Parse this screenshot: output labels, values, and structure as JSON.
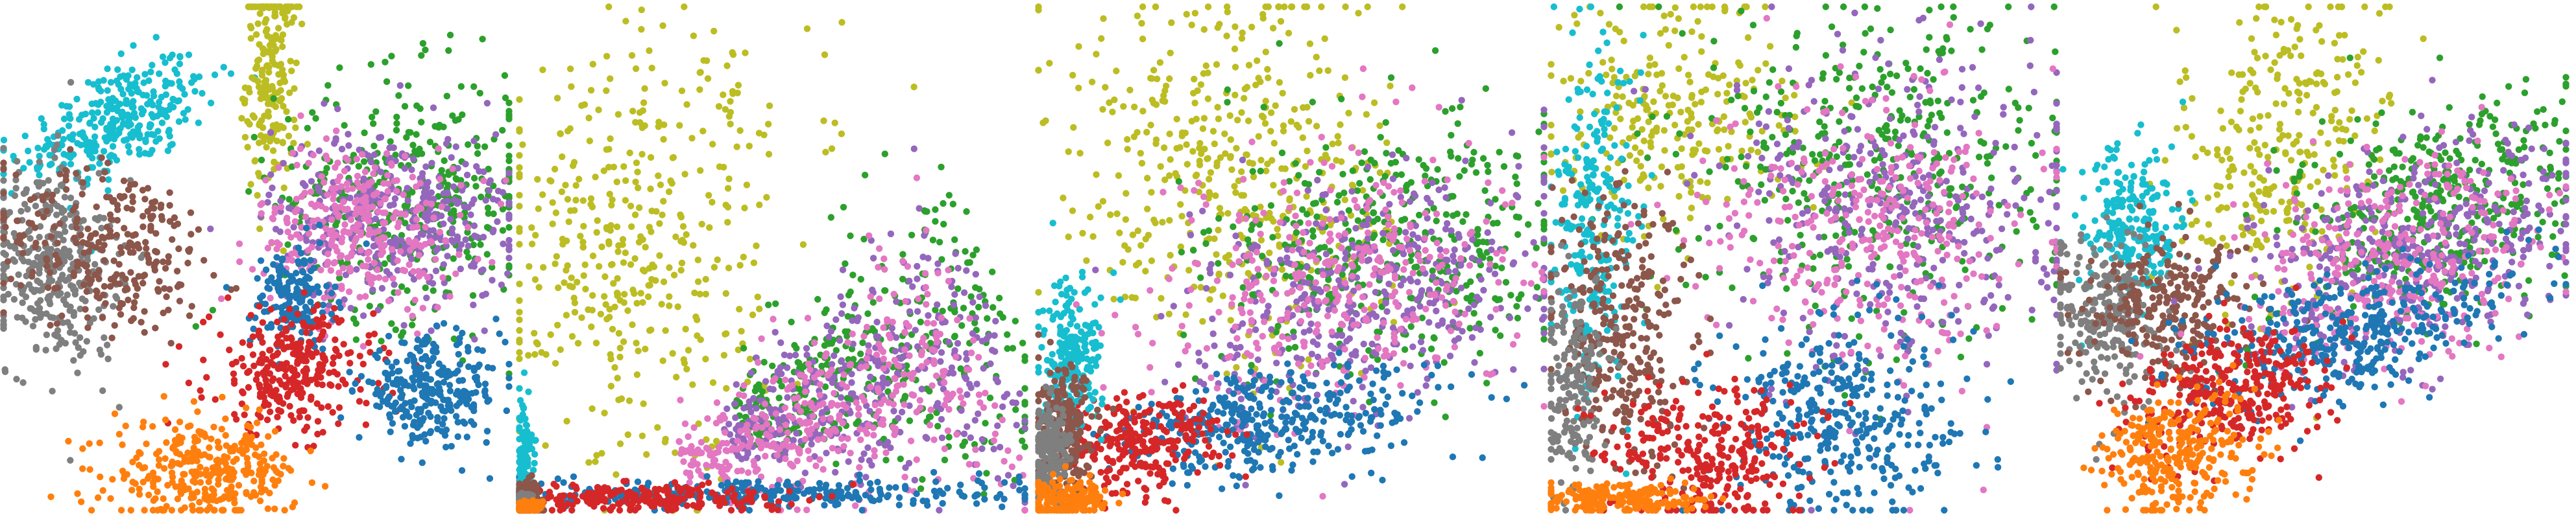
{
  "palette": {
    "blue": "#1f77b4",
    "orange": "#ff7f0e",
    "green": "#2ca02c",
    "red": "#d62728",
    "purple": "#9467bd",
    "brown": "#8c564b",
    "pink": "#e377c2",
    "gray": "#7f7f7f",
    "olive": "#bcbd22",
    "cyan": "#17becf"
  },
  "chart_data": [
    {
      "type": "scatter",
      "title": "",
      "xlabel": "",
      "ylabel": "",
      "axes_visible": false,
      "grid": false,
      "legend": "none",
      "xlim": [
        0,
        100
      ],
      "ylim": [
        0,
        100
      ],
      "clusters": [
        {
          "color": "cyan",
          "shape": "blob",
          "cx": 23,
          "cy": 77,
          "sx": 10,
          "sy": 5,
          "angle": 25,
          "n": 320
        },
        {
          "color": "olive",
          "shape": "blob",
          "cx": 53,
          "cy": 86,
          "sx": 2.5,
          "sy": 12,
          "angle": 0,
          "n": 220
        },
        {
          "color": "gray",
          "shape": "blob",
          "cx": 10,
          "cy": 49,
          "sx": 6,
          "sy": 10,
          "angle": 10,
          "n": 360
        },
        {
          "color": "brown",
          "shape": "blob",
          "cx": 22,
          "cy": 52,
          "sx": 11,
          "sy": 8,
          "angle": -15,
          "n": 280
        },
        {
          "color": "green",
          "shape": "blob",
          "cx": 80,
          "cy": 62,
          "sx": 13,
          "sy": 12,
          "angle": 0,
          "n": 380
        },
        {
          "color": "purple",
          "shape": "blob",
          "cx": 77,
          "cy": 58,
          "sx": 12,
          "sy": 9,
          "angle": 0,
          "n": 360
        },
        {
          "color": "pink",
          "shape": "blob",
          "cx": 70,
          "cy": 56,
          "sx": 10,
          "sy": 8,
          "angle": 0,
          "n": 320
        },
        {
          "color": "blue",
          "shape": "blob",
          "cx": 57,
          "cy": 42,
          "sx": 4,
          "sy": 5,
          "angle": 0,
          "n": 160
        },
        {
          "color": "red",
          "shape": "blob",
          "cx": 57,
          "cy": 28,
          "sx": 8,
          "sy": 6,
          "angle": 0,
          "n": 300
        },
        {
          "color": "blue",
          "shape": "blob",
          "cx": 84,
          "cy": 24,
          "sx": 7,
          "sy": 5,
          "angle": 0,
          "n": 280
        },
        {
          "color": "orange",
          "shape": "blob",
          "cx": 40,
          "cy": 8,
          "sx": 9,
          "sy": 5,
          "angle": 0,
          "n": 320
        }
      ]
    },
    {
      "type": "scatter",
      "title": "",
      "xlabel": "",
      "ylabel": "",
      "axes_visible": false,
      "grid": false,
      "legend": "none",
      "xlim": [
        0,
        100
      ],
      "ylim": [
        0,
        100
      ],
      "clusters": [
        {
          "color": "olive",
          "shape": "blob",
          "cx": 22,
          "cy": 48,
          "sx": 13,
          "sy": 20,
          "angle": 0,
          "n": 360
        },
        {
          "color": "olive",
          "shape": "blob",
          "cx": 35,
          "cy": 80,
          "sx": 14,
          "sy": 10,
          "angle": 0,
          "n": 70
        },
        {
          "color": "green",
          "shape": "wedge",
          "cx": 70,
          "cy": 30,
          "sx": 22,
          "sy": 14,
          "angle": 25,
          "n": 380
        },
        {
          "color": "purple",
          "shape": "wedge",
          "cx": 68,
          "cy": 25,
          "sx": 22,
          "sy": 13,
          "angle": 22,
          "n": 380
        },
        {
          "color": "pink",
          "shape": "wedge",
          "cx": 62,
          "cy": 20,
          "sx": 24,
          "sy": 12,
          "angle": 20,
          "n": 420
        },
        {
          "color": "blue",
          "shape": "blob",
          "cx": 48,
          "cy": 4,
          "sx": 25,
          "sy": 1.5,
          "angle": 0,
          "n": 300
        },
        {
          "color": "red",
          "shape": "blob",
          "cx": 22,
          "cy": 3,
          "sx": 16,
          "sy": 1.5,
          "angle": 0,
          "n": 260
        },
        {
          "color": "cyan",
          "shape": "blob",
          "cx": 1.5,
          "cy": 10,
          "sx": 0.8,
          "sy": 6,
          "angle": 0,
          "n": 160
        },
        {
          "color": "brown",
          "shape": "blob",
          "cx": 2,
          "cy": 3,
          "sx": 1.5,
          "sy": 2,
          "angle": 0,
          "n": 120
        },
        {
          "color": "gray",
          "shape": "blob",
          "cx": 1.5,
          "cy": 2,
          "sx": 1,
          "sy": 1.2,
          "angle": 0,
          "n": 120
        },
        {
          "color": "orange",
          "shape": "blob",
          "cx": 2,
          "cy": 1,
          "sx": 1.5,
          "sy": 0.8,
          "angle": 0,
          "n": 120
        }
      ]
    },
    {
      "type": "scatter",
      "title": "",
      "xlabel": "",
      "ylabel": "",
      "axes_visible": false,
      "grid": false,
      "legend": "none",
      "xlim": [
        0,
        100
      ],
      "ylim": [
        0,
        100
      ],
      "clusters": [
        {
          "color": "olive",
          "shape": "blob",
          "cx": 40,
          "cy": 66,
          "sx": 16,
          "sy": 20,
          "angle": 20,
          "n": 460
        },
        {
          "color": "green",
          "shape": "blob",
          "cx": 70,
          "cy": 52,
          "sx": 17,
          "sy": 12,
          "angle": 20,
          "n": 420
        },
        {
          "color": "purple",
          "shape": "blob",
          "cx": 65,
          "cy": 43,
          "sx": 18,
          "sy": 11,
          "angle": 18,
          "n": 420
        },
        {
          "color": "pink",
          "shape": "blob",
          "cx": 60,
          "cy": 46,
          "sx": 18,
          "sy": 12,
          "angle": 18,
          "n": 360
        },
        {
          "color": "blue",
          "shape": "blob",
          "cx": 47,
          "cy": 18,
          "sx": 16,
          "sy": 5,
          "angle": 8,
          "n": 380
        },
        {
          "color": "red",
          "shape": "blob",
          "cx": 20,
          "cy": 14,
          "sx": 8,
          "sy": 5,
          "angle": 5,
          "n": 260
        },
        {
          "color": "cyan",
          "shape": "blob",
          "cx": 7,
          "cy": 30,
          "sx": 3,
          "sy": 7,
          "angle": 0,
          "n": 230
        },
        {
          "color": "brown",
          "shape": "blob",
          "cx": 6,
          "cy": 16,
          "sx": 3,
          "sy": 6,
          "angle": 0,
          "n": 230
        },
        {
          "color": "gray",
          "shape": "blob",
          "cx": 3,
          "cy": 11,
          "sx": 2,
          "sy": 5,
          "angle": 0,
          "n": 180
        },
        {
          "color": "orange",
          "shape": "blob",
          "cx": 6,
          "cy": 3,
          "sx": 4,
          "sy": 2,
          "angle": 0,
          "n": 180
        }
      ]
    },
    {
      "type": "scatter",
      "title": "",
      "xlabel": "",
      "ylabel": "",
      "axes_visible": false,
      "grid": false,
      "legend": "none",
      "xlim": [
        0,
        100
      ],
      "ylim": [
        0,
        100
      ],
      "clusters": [
        {
          "color": "olive",
          "shape": "blob",
          "cx": 25,
          "cy": 78,
          "sx": 12,
          "sy": 12,
          "angle": 0,
          "n": 260
        },
        {
          "color": "green",
          "shape": "blob",
          "cx": 65,
          "cy": 68,
          "sx": 18,
          "sy": 16,
          "angle": 0,
          "n": 420
        },
        {
          "color": "purple",
          "shape": "blob",
          "cx": 70,
          "cy": 60,
          "sx": 17,
          "sy": 16,
          "angle": 0,
          "n": 380
        },
        {
          "color": "pink",
          "shape": "blob",
          "cx": 64,
          "cy": 56,
          "sx": 16,
          "sy": 14,
          "angle": 0,
          "n": 340
        },
        {
          "color": "cyan",
          "shape": "blob",
          "cx": 9,
          "cy": 56,
          "sx": 4,
          "sy": 16,
          "angle": 0,
          "n": 260
        },
        {
          "color": "brown",
          "shape": "blob",
          "cx": 14,
          "cy": 36,
          "sx": 7,
          "sy": 14,
          "angle": 0,
          "n": 320
        },
        {
          "color": "gray",
          "shape": "blob",
          "cx": 5,
          "cy": 25,
          "sx": 3,
          "sy": 10,
          "angle": 0,
          "n": 180
        },
        {
          "color": "blue",
          "shape": "blob",
          "cx": 57,
          "cy": 18,
          "sx": 12,
          "sy": 10,
          "angle": 0,
          "n": 360
        },
        {
          "color": "red",
          "shape": "blob",
          "cx": 32,
          "cy": 12,
          "sx": 10,
          "sy": 7,
          "angle": 0,
          "n": 300
        },
        {
          "color": "orange",
          "shape": "blob",
          "cx": 15,
          "cy": 3,
          "sx": 8,
          "sy": 1.5,
          "angle": 0,
          "n": 200
        }
      ]
    },
    {
      "type": "scatter",
      "title": "",
      "xlabel": "",
      "ylabel": "",
      "axes_visible": false,
      "grid": false,
      "legend": "none",
      "xlim": [
        0,
        100
      ],
      "ylim": [
        0,
        100
      ],
      "clusters": [
        {
          "color": "olive",
          "shape": "blob",
          "cx": 43,
          "cy": 70,
          "sx": 10,
          "sy": 18,
          "angle": -15,
          "n": 300
        },
        {
          "color": "cyan",
          "shape": "blob",
          "cx": 14,
          "cy": 56,
          "sx": 5,
          "sy": 8,
          "angle": 0,
          "n": 220
        },
        {
          "color": "gray",
          "shape": "blob",
          "cx": 10,
          "cy": 38,
          "sx": 6,
          "sy": 8,
          "angle": 0,
          "n": 260
        },
        {
          "color": "brown",
          "shape": "blob",
          "cx": 22,
          "cy": 40,
          "sx": 8,
          "sy": 7,
          "angle": 0,
          "n": 260
        },
        {
          "color": "green",
          "shape": "blob",
          "cx": 74,
          "cy": 60,
          "sx": 16,
          "sy": 10,
          "angle": 30,
          "n": 420
        },
        {
          "color": "purple",
          "shape": "blob",
          "cx": 72,
          "cy": 52,
          "sx": 17,
          "sy": 10,
          "angle": 28,
          "n": 420
        },
        {
          "color": "pink",
          "shape": "blob",
          "cx": 66,
          "cy": 50,
          "sx": 15,
          "sy": 9,
          "angle": 25,
          "n": 340
        },
        {
          "color": "blue",
          "shape": "blob",
          "cx": 56,
          "cy": 35,
          "sx": 16,
          "sy": 6,
          "angle": 15,
          "n": 380
        },
        {
          "color": "red",
          "shape": "blob",
          "cx": 34,
          "cy": 24,
          "sx": 10,
          "sy": 6,
          "angle": 20,
          "n": 320
        },
        {
          "color": "orange",
          "shape": "blob",
          "cx": 23,
          "cy": 12,
          "sx": 8,
          "sy": 6,
          "angle": 20,
          "n": 300
        }
      ]
    }
  ]
}
